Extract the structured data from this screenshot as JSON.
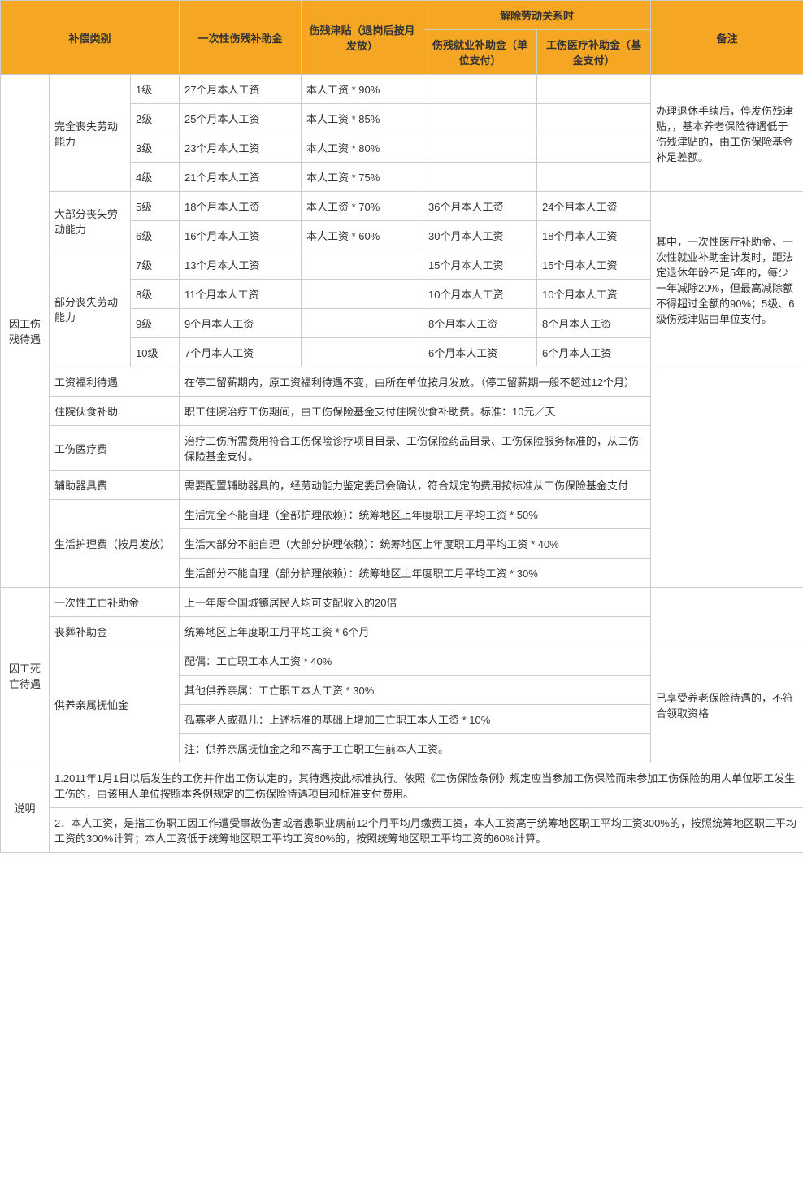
{
  "header": {
    "comp_category": "补偿类别",
    "one_time_disability": "一次性伤残补助金",
    "disability_allowance": "伤残津贴（退岗后按月发放）",
    "termination_group": "解除劳动关系时",
    "employment_subsidy": "伤残就业补助金（单位支付）",
    "medical_subsidy": "工伤医疗补助金（基金支付）",
    "remarks": "备注"
  },
  "groups": {
    "disability": "因工伤残待遇",
    "death": "因工死亡待遇",
    "explain": "说明"
  },
  "capacity": {
    "full_loss": "完全丧失劳动能力",
    "most_loss": "大部分丧失劳动能力",
    "partial_loss": "部分丧失劳动能力"
  },
  "levels": {
    "l1": {
      "grade": "1级",
      "one_time": "27个月本人工资",
      "allowance": "本人工资 * 90%"
    },
    "l2": {
      "grade": "2级",
      "one_time": "25个月本人工资",
      "allowance": "本人工资 * 85%"
    },
    "l3": {
      "grade": "3级",
      "one_time": "23个月本人工资",
      "allowance": "本人工资 * 80%"
    },
    "l4": {
      "grade": "4级",
      "one_time": "21个月本人工资",
      "allowance": "本人工资 * 75%"
    },
    "l5": {
      "grade": "5级",
      "one_time": "18个月本人工资",
      "allowance": "本人工资 * 70%",
      "emp": "36个月本人工资",
      "med": "24个月本人工资"
    },
    "l6": {
      "grade": "6级",
      "one_time": "16个月本人工资",
      "allowance": "本人工资 * 60%",
      "emp": "30个月本人工资",
      "med": "18个月本人工资"
    },
    "l7": {
      "grade": "7级",
      "one_time": "13个月本人工资",
      "emp": "15个月本人工资",
      "med": "15个月本人工资"
    },
    "l8": {
      "grade": "8级",
      "one_time": "11个月本人工资",
      "emp": "10个月本人工资",
      "med": "10个月本人工资"
    },
    "l9": {
      "grade": "9级",
      "one_time": "9个月本人工资",
      "emp": "8个月本人工资",
      "med": "8个月本人工资"
    },
    "l10": {
      "grade": "10级",
      "one_time": "7个月本人工资",
      "emp": "6个月本人工资",
      "med": "6个月本人工资"
    }
  },
  "remarks": {
    "r1": "办理退休手续后，停发伤残津贴，，基本养老保险待遇低于伤残津贴的，由工伤保险基金补足差额。",
    "r2": "其中，一次性医疗补助金、一次性就业补助金计发时，距法定退休年龄不足5年的，每少一年减除20%，但最高减除额不得超过全额的90%；5级、6级伤残津贴由单位支付。"
  },
  "items": {
    "salary_welfare": {
      "label": "工资福利待遇",
      "text": "在停工留薪期内，原工资福利待遇不变，由所在单位按月发放。（停工留薪期一般不超过12个月）"
    },
    "hospital_food": {
      "label": "住院伙食补助",
      "text": "职工住院治疗工伤期间，由工伤保险基金支付住院伙食补助费。标准：10元／天"
    },
    "medical_fee": {
      "label": "工伤医疗费",
      "text": "治疗工伤所需费用符合工伤保险诊疗项目目录、工伤保险药品目录、工伤保险服务标准的，从工伤保险基金支付。"
    },
    "assist_device": {
      "label": "辅助器具费",
      "text": "需要配置辅助器具的，经劳动能力鉴定委员会确认，符合规定的费用按标准从工伤保险基金支付"
    },
    "nursing": {
      "label": "生活护理费（按月发放）",
      "t1": "生活完全不能自理（全部护理依赖）：统筹地区上年度职工月平均工资 * 50%",
      "t2": "生活大部分不能自理（大部分护理依赖）：统筹地区上年度职工月平均工资 * 40%",
      "t3": "生活部分不能自理（部分护理依赖）：统筹地区上年度职工月平均工资 * 30%"
    }
  },
  "death": {
    "one_time": {
      "label": "一次性工亡补助金",
      "text": "上一年度全国城镇居民人均可支配收入的20倍"
    },
    "funeral": {
      "label": "丧葬补助金",
      "text": "统筹地区上年度职工月平均工资 * 6个月"
    },
    "dependent": {
      "label": "供养亲属抚恤金",
      "spouse": "配偶：工亡职工本人工资 * 40%",
      "others": "其他供养亲属：工亡职工本人工资 * 30%",
      "orphan": "孤寡老人或孤儿：上述标准的基础上增加工亡职工本人工资 * 10%",
      "note": "注：供养亲属抚恤金之和不高于工亡职工生前本人工资。",
      "remark": "已享受养老保险待遇的，不符合领取资格"
    }
  },
  "explain": {
    "p1": "1.2011年1月1日以后发生的工伤并作出工伤认定的，其待遇按此标准执行。依照《工伤保险条例》规定应当参加工伤保险而未参加工伤保险的用人单位职工发生工伤的，由该用人单位按照本条例规定的工伤保险待遇项目和标准支付费用。",
    "p2": "2．本人工资，是指工伤职工因工作遭受事故伤害或者患职业病前12个月平均月缴费工资，本人工资高于统筹地区职工平均工资300%的，按照统筹地区职工平均工资的300%计算；本人工资低于统筹地区职工平均工资60%的，按照统筹地区职工平均工资的60%计算。"
  },
  "style": {
    "header_bg": "#f5a623",
    "border_color": "#cccccc",
    "font_size": 13,
    "text_color": "#333333"
  }
}
